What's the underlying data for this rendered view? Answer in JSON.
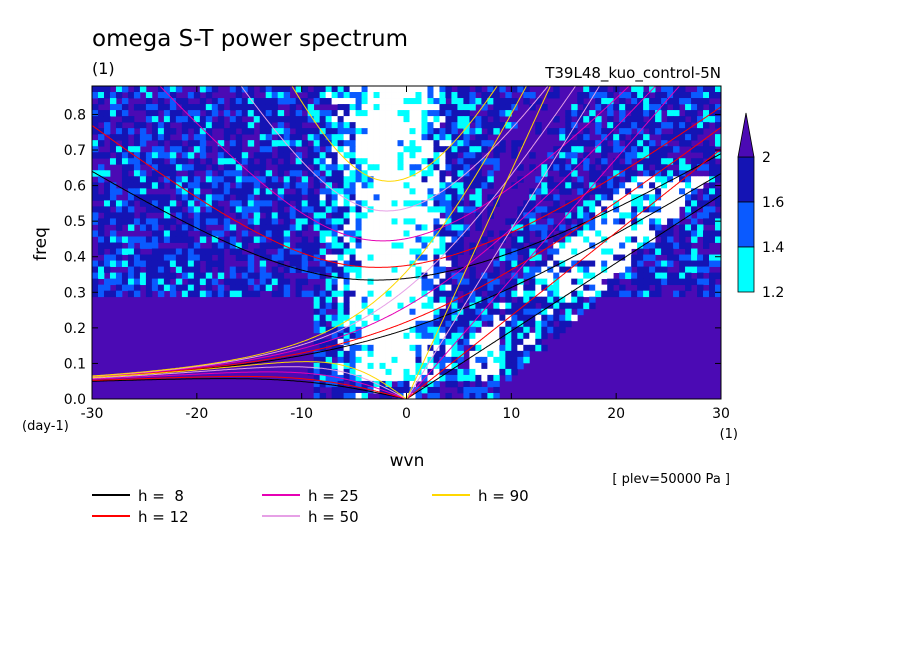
{
  "chart_data": {
    "type": "heatmap",
    "title": "omega S-T power spectrum",
    "units_label": "(1)",
    "case_label": "T39L48_kuo_control-5N",
    "xlabel": "wvn",
    "ylabel": "freq",
    "x_units": "(1)",
    "y_units": "(day-1)",
    "level_note": "[ plev=50000 Pa ]",
    "xlim": [
      -30,
      30
    ],
    "ylim": [
      0,
      0.88
    ],
    "x_ticks": [
      -30,
      -20,
      -10,
      0,
      10,
      20,
      30
    ],
    "y_ticks": [
      0.0,
      0.1,
      0.2,
      0.3,
      0.4,
      0.5,
      0.6,
      0.7,
      0.8
    ],
    "x_tick_labels": [
      "-30",
      "-20",
      "-10",
      "0",
      "10",
      "20",
      "30"
    ],
    "y_tick_labels": [
      "0.0",
      "0.1",
      "0.2",
      "0.3",
      "0.4",
      "0.5",
      "0.6",
      "0.7",
      "0.8"
    ],
    "colorbar": {
      "levels": [
        1.2,
        1.4,
        1.6,
        2
      ],
      "labels": [
        "1.2",
        "1.4",
        "1.6",
        "2"
      ],
      "colors": [
        "#00ffff",
        "#0a5aff",
        "#1414b4",
        "#4b0ab4"
      ],
      "below_color": "#ffffff"
    },
    "dispersion_curves": [
      {
        "label": "h =  8",
        "h": 8,
        "color": "#000000"
      },
      {
        "label": "h = 12",
        "h": 12,
        "color": "#ff0000"
      },
      {
        "label": "h = 25",
        "h": 25,
        "color": "#e600b4"
      },
      {
        "label": "h = 50",
        "h": 50,
        "color": "#e6a0e6"
      },
      {
        "label": "h = 90",
        "h": 90,
        "color": "#ffd700"
      }
    ],
    "grid": false
  }
}
